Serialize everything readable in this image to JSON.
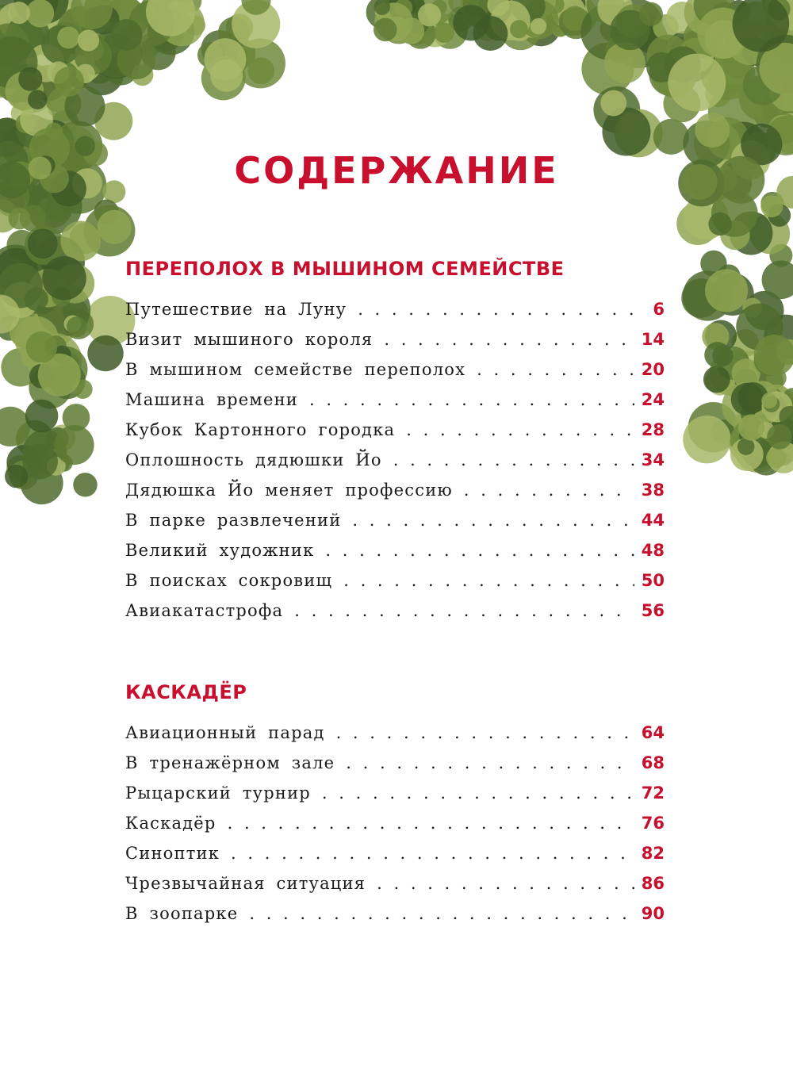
{
  "title": "СОДЕРЖАНИЕ",
  "accent_color": "#c8102e",
  "decoration": "green-foliage-border",
  "sections": [
    {
      "title": "ПЕРЕПОЛОХ В МЫШИНОМ СЕМЕЙСТВЕ",
      "entries": [
        {
          "label": "Путешествие на Луну",
          "page": "6"
        },
        {
          "label": "Визит мышиного короля",
          "page": "14"
        },
        {
          "label": "В мышином семействе переполох",
          "page": "20"
        },
        {
          "label": "Машина времени",
          "page": "24"
        },
        {
          "label": "Кубок Картонного городка",
          "page": "28"
        },
        {
          "label": "Оплошность дядюшки Йо",
          "page": "34"
        },
        {
          "label": "Дядюшка Йо меняет профессию",
          "page": "38"
        },
        {
          "label": "В парке развлечений",
          "page": "44"
        },
        {
          "label": "Великий художник",
          "page": "48"
        },
        {
          "label": "В поисках сокровищ",
          "page": "50"
        },
        {
          "label": "Авиакатастрофа",
          "page": "56"
        }
      ]
    },
    {
      "title": "КАСКАДЁР",
      "entries": [
        {
          "label": "Авиационный парад",
          "page": "64"
        },
        {
          "label": "В тренажёрном зале",
          "page": "68"
        },
        {
          "label": "Рыцарский турнир",
          "page": "72"
        },
        {
          "label": "Каскадёр",
          "page": "76"
        },
        {
          "label": "Синоптик",
          "page": "82"
        },
        {
          "label": "Чрезвычайная ситуация",
          "page": "86"
        },
        {
          "label": "В зоопарке",
          "page": "90"
        }
      ]
    }
  ]
}
